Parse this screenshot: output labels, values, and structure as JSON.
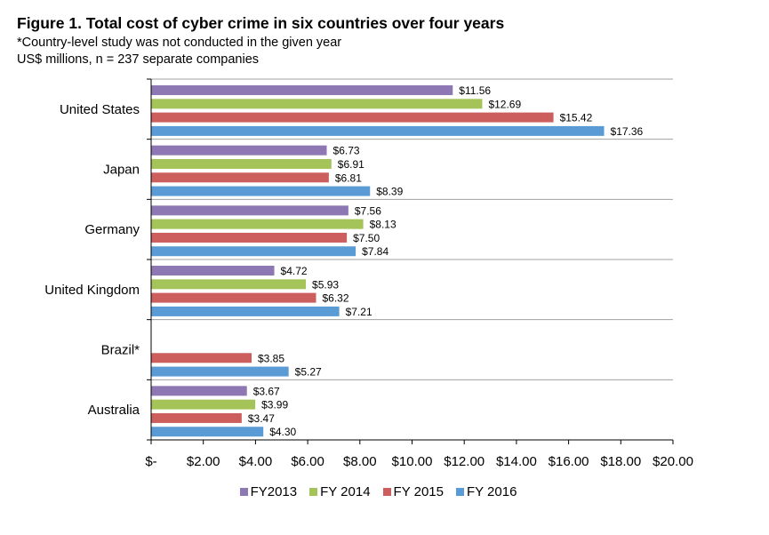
{
  "chart_data": {
    "type": "bar",
    "orientation": "horizontal",
    "title": "Figure 1. Total cost of cyber crime in six countries over four years",
    "subtitle_lines": [
      "*Country-level study was not conducted in the given year",
      "US$ millions, n = 237 separate companies"
    ],
    "xlabel": "",
    "ylabel": "",
    "xlim": [
      0,
      20
    ],
    "x_ticks": [
      "$-",
      "$2.00",
      "$4.00",
      "$6.00",
      "$8.00",
      "$10.00",
      "$12.00",
      "$14.00",
      "$16.00",
      "$18.00",
      "$20.00"
    ],
    "categories": [
      "United States",
      "Japan",
      "Germany",
      "United Kingdom",
      "Brazil*",
      "Australia"
    ],
    "series": [
      {
        "name": "FY2013",
        "color": "#8E78B4",
        "values": [
          11.56,
          6.73,
          7.56,
          4.72,
          null,
          3.67
        ],
        "labels": [
          "$11.56",
          "$6.73",
          "$7.56",
          "$4.72",
          null,
          "$3.67"
        ]
      },
      {
        "name": "FY 2014",
        "color": "#A4C45A",
        "values": [
          12.69,
          6.91,
          8.13,
          5.93,
          null,
          3.99
        ],
        "labels": [
          "$12.69",
          "$6.91",
          "$8.13",
          "$5.93",
          null,
          "$3.99"
        ]
      },
      {
        "name": "FY 2015",
        "color": "#CC5E5E",
        "values": [
          15.42,
          6.81,
          7.5,
          6.32,
          3.85,
          3.47
        ],
        "labels": [
          "$15.42",
          "$6.81",
          "$7.50",
          "$6.32",
          "$3.85",
          "$3.47"
        ]
      },
      {
        "name": "FY 2016",
        "color": "#5B9BD5",
        "values": [
          17.36,
          8.39,
          7.84,
          7.21,
          5.27,
          4.3
        ],
        "labels": [
          "$17.36",
          "$8.39",
          "$7.84",
          "$7.21",
          "$5.27",
          "$4.30"
        ]
      }
    ],
    "grid": "horizontal separators",
    "legend_position": "bottom"
  }
}
